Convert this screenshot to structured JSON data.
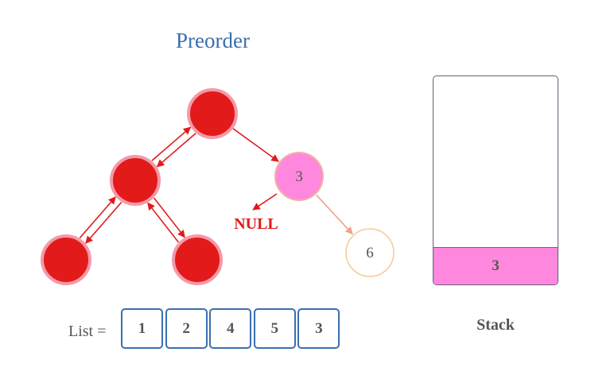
{
  "title": "Preorder",
  "tree": {
    "nodes": [
      {
        "id": "root",
        "label": "",
        "state": "visited"
      },
      {
        "id": "left",
        "label": "",
        "state": "visited"
      },
      {
        "id": "left-left",
        "label": "",
        "state": "visited"
      },
      {
        "id": "left-right",
        "label": "",
        "state": "visited"
      },
      {
        "id": "right",
        "label": "3",
        "state": "current"
      },
      {
        "id": "right-right",
        "label": "6",
        "state": "unvisited"
      }
    ],
    "edges": [
      {
        "from": "root",
        "to": "left",
        "state": "traversed"
      },
      {
        "from": "left",
        "to": "left-left",
        "state": "traversed"
      },
      {
        "from": "left",
        "to": "left-right",
        "state": "traversed"
      },
      {
        "from": "root",
        "to": "right",
        "state": "traversed"
      },
      {
        "from": "right",
        "to": "right-right",
        "state": "pending"
      }
    ],
    "null_label": "NULL"
  },
  "list": {
    "label": "List =",
    "values": [
      "1",
      "2",
      "4",
      "5",
      "3"
    ]
  },
  "stack": {
    "label": "Stack",
    "items": [
      "3"
    ]
  },
  "colors": {
    "visited_fill": "#e31a1a",
    "visited_ring": "#f39aa8",
    "current_fill": "#ff88de",
    "current_ring": "#f2b2a0",
    "unvisited_ring": "#f8c898",
    "edge_red": "#e31a1a",
    "edge_pending": "#f0a088",
    "title": "#3a6fb0",
    "list_border": "#3a6fb0"
  }
}
